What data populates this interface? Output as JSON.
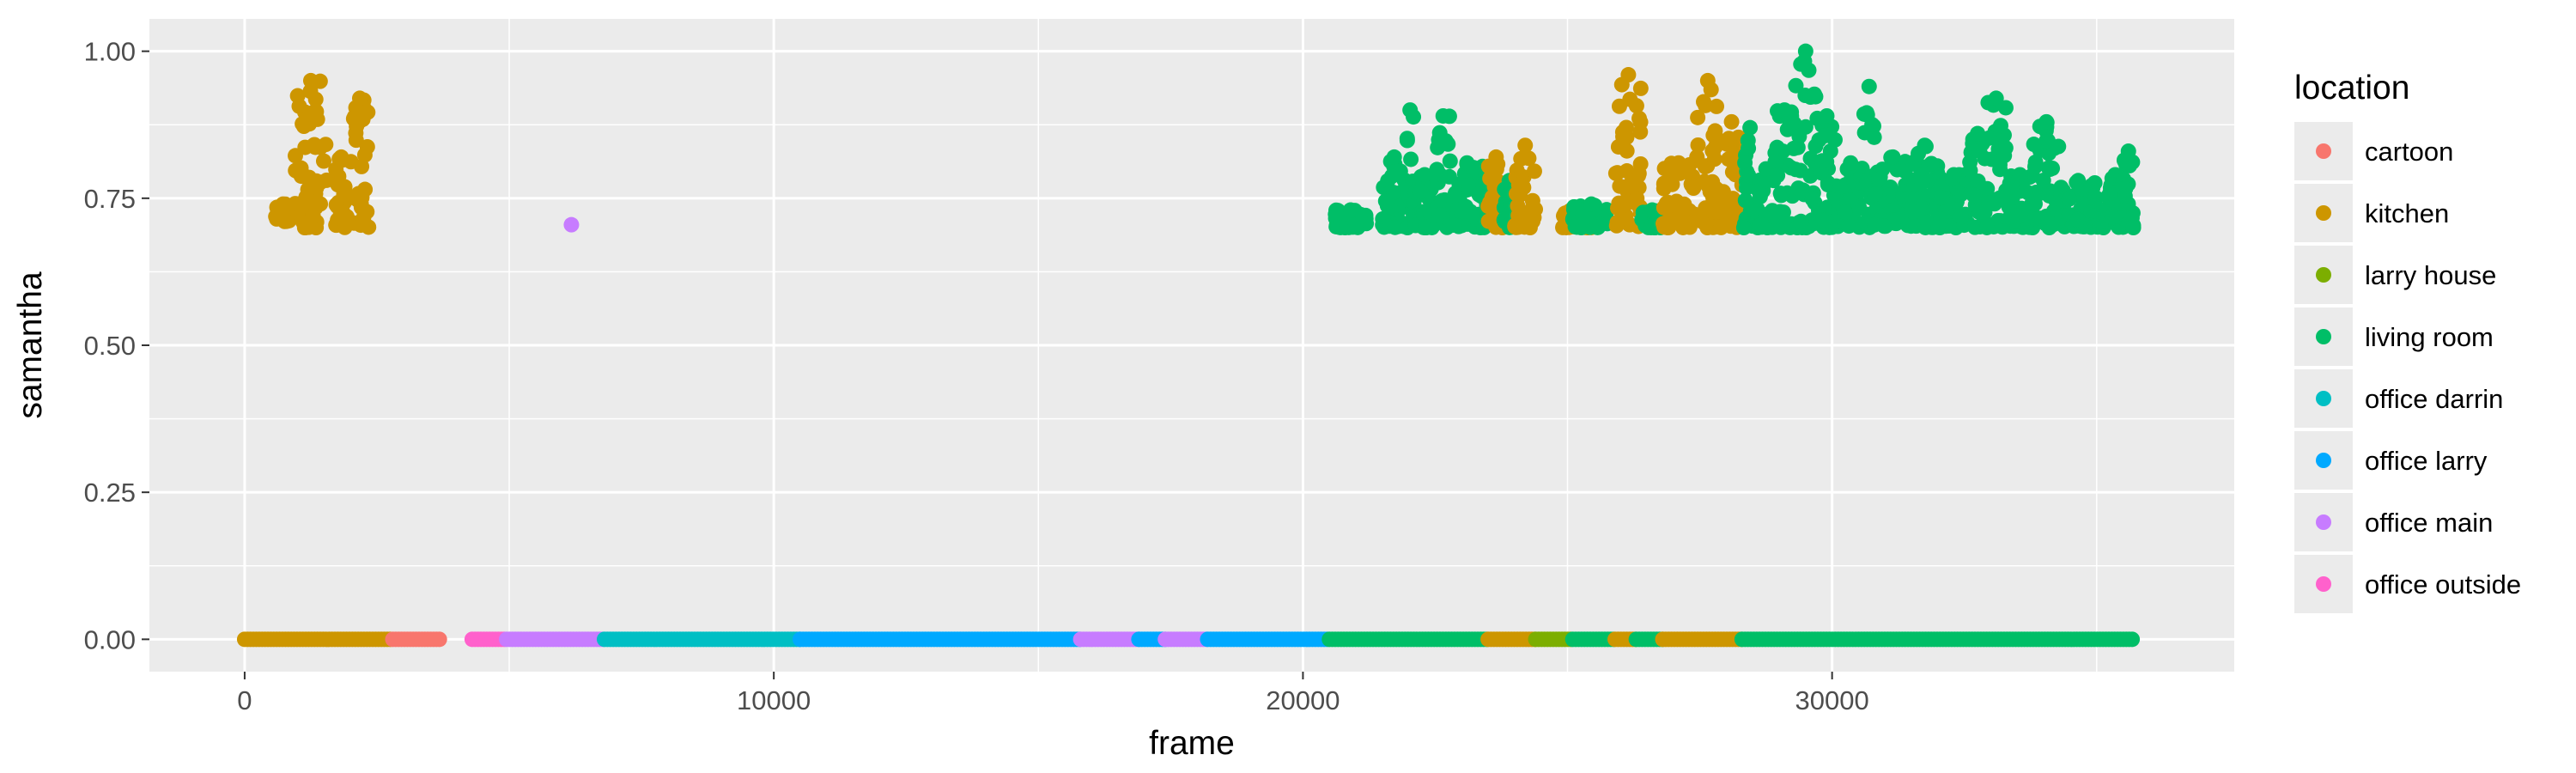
{
  "chart_data": {
    "type": "scatter",
    "title": "",
    "xlabel": "frame",
    "ylabel": "samantha",
    "xlim": [
      -1800,
      37600
    ],
    "ylim": [
      -0.055,
      1.055
    ],
    "x_ticks": [
      0,
      10000,
      20000,
      30000
    ],
    "x_tick_labels": [
      "0",
      "10000",
      "20000",
      "30000"
    ],
    "y_ticks": [
      0,
      0.25,
      0.5,
      0.75,
      1.0
    ],
    "y_tick_labels": [
      "0.00",
      "0.25",
      "0.50",
      "0.75",
      "1.00"
    ],
    "grid": true,
    "legend": {
      "title": "location",
      "placement": "right",
      "entries": [
        "cartoon",
        "kitchen",
        "larry house",
        "living room",
        "office darrin",
        "office larry",
        "office main",
        "office outside"
      ]
    },
    "colors": {
      "cartoon": "#F8766D",
      "kitchen": "#CD9600",
      "larry house": "#7CAE00",
      "living room": "#00BE67",
      "office darrin": "#00BFC4",
      "office larry": "#00A9FF",
      "office main": "#C77CFF",
      "office outside": "#FF61CC"
    },
    "baseline_segments": [
      {
        "location": "kitchen",
        "x": [
          0,
          2800
        ],
        "y": 0
      },
      {
        "location": "cartoon",
        "x": [
          2800,
          3700
        ],
        "y": 0
      },
      {
        "location": "office outside",
        "x": [
          4300,
          4950
        ],
        "y": 0
      },
      {
        "location": "office main",
        "x": [
          4950,
          6800
        ],
        "y": 0
      },
      {
        "location": "office darrin",
        "x": [
          6800,
          10500
        ],
        "y": 0
      },
      {
        "location": "office larry",
        "x": [
          10500,
          15800
        ],
        "y": 0
      },
      {
        "location": "office main",
        "x": [
          15800,
          16900
        ],
        "y": 0
      },
      {
        "location": "office larry",
        "x": [
          16900,
          17400
        ],
        "y": 0
      },
      {
        "location": "office main",
        "x": [
          17400,
          18200
        ],
        "y": 0
      },
      {
        "location": "office larry",
        "x": [
          18200,
          20500
        ],
        "y": 0
      },
      {
        "location": "living room",
        "x": [
          20500,
          23500
        ],
        "y": 0
      },
      {
        "location": "kitchen",
        "x": [
          23500,
          24400
        ],
        "y": 0
      },
      {
        "location": "larry house",
        "x": [
          24400,
          25100
        ],
        "y": 0
      },
      {
        "location": "living room",
        "x": [
          25100,
          25900
        ],
        "y": 0
      },
      {
        "location": "kitchen",
        "x": [
          25900,
          26300
        ],
        "y": 0
      },
      {
        "location": "living room",
        "x": [
          26300,
          26800
        ],
        "y": 0
      },
      {
        "location": "kitchen",
        "x": [
          26800,
          28300
        ],
        "y": 0
      },
      {
        "location": "living room",
        "x": [
          28300,
          35700
        ],
        "y": 0
      }
    ],
    "high_clusters": [
      {
        "location": "kitchen",
        "x": [
          550,
          900
        ],
        "y": [
          0.71,
          0.74
        ]
      },
      {
        "location": "kitchen",
        "x": [
          950,
          1550
        ],
        "y": [
          0.7,
          0.95
        ]
      },
      {
        "location": "kitchen",
        "x": [
          1700,
          1950
        ],
        "y": [
          0.7,
          0.82
        ]
      },
      {
        "location": "kitchen",
        "x": [
          2000,
          2350
        ],
        "y": [
          0.7,
          0.92
        ]
      },
      {
        "location": "office main",
        "x": [
          6150,
          6200
        ],
        "y": [
          0.705,
          0.705
        ]
      },
      {
        "location": "living room",
        "x": [
          20600,
          21200
        ],
        "y": [
          0.7,
          0.73
        ]
      },
      {
        "location": "living room",
        "x": [
          21500,
          21950
        ],
        "y": [
          0.7,
          0.82
        ]
      },
      {
        "location": "living room",
        "x": [
          21950,
          22100
        ],
        "y": [
          0.7,
          0.9
        ]
      },
      {
        "location": "living room",
        "x": [
          22100,
          22500
        ],
        "y": [
          0.7,
          0.79
        ]
      },
      {
        "location": "living room",
        "x": [
          22500,
          22800
        ],
        "y": [
          0.7,
          0.89
        ]
      },
      {
        "location": "living room",
        "x": [
          22800,
          23400
        ],
        "y": [
          0.7,
          0.81
        ]
      },
      {
        "location": "living room",
        "x": [
          23400,
          23500
        ],
        "y": [
          0.7,
          0.79
        ]
      },
      {
        "location": "kitchen",
        "x": [
          23500,
          23800
        ],
        "y": [
          0.7,
          0.82
        ]
      },
      {
        "location": "living room",
        "x": [
          23800,
          24000
        ],
        "y": [
          0.7,
          0.78
        ]
      },
      {
        "location": "kitchen",
        "x": [
          24000,
          24400
        ],
        "y": [
          0.7,
          0.84
        ]
      },
      {
        "location": "kitchen",
        "x": [
          24900,
          25600
        ],
        "y": [
          0.7,
          0.73
        ]
      },
      {
        "location": "living room",
        "x": [
          25100,
          25800
        ],
        "y": [
          0.7,
          0.74
        ]
      },
      {
        "location": "kitchen",
        "x": [
          25900,
          26400
        ],
        "y": [
          0.7,
          0.96
        ]
      },
      {
        "location": "living room",
        "x": [
          26400,
          26800
        ],
        "y": [
          0.7,
          0.73
        ]
      },
      {
        "location": "kitchen",
        "x": [
          26800,
          27400
        ],
        "y": [
          0.7,
          0.81
        ]
      },
      {
        "location": "kitchen",
        "x": [
          27400,
          27900
        ],
        "y": [
          0.7,
          0.95
        ]
      },
      {
        "location": "kitchen",
        "x": [
          27900,
          28300
        ],
        "y": [
          0.7,
          0.88
        ]
      },
      {
        "location": "living room",
        "x": [
          28300,
          28600
        ],
        "y": [
          0.7,
          0.87
        ]
      },
      {
        "location": "living room",
        "x": [
          28600,
          28900
        ],
        "y": [
          0.7,
          0.8
        ]
      },
      {
        "location": "living room",
        "x": [
          28900,
          29300
        ],
        "y": [
          0.7,
          0.9
        ]
      },
      {
        "location": "living room",
        "x": [
          29300,
          29700
        ],
        "y": [
          0.7,
          1.0
        ]
      },
      {
        "location": "living room",
        "x": [
          29700,
          30100
        ],
        "y": [
          0.7,
          0.89
        ]
      },
      {
        "location": "living room",
        "x": [
          30100,
          30600
        ],
        "y": [
          0.7,
          0.81
        ]
      },
      {
        "location": "living room",
        "x": [
          30600,
          30800
        ],
        "y": [
          0.7,
          0.94
        ]
      },
      {
        "location": "living room",
        "x": [
          30800,
          31500
        ],
        "y": [
          0.7,
          0.82
        ]
      },
      {
        "location": "living room",
        "x": [
          31500,
          32000
        ],
        "y": [
          0.7,
          0.84
        ]
      },
      {
        "location": "living room",
        "x": [
          32000,
          32600
        ],
        "y": [
          0.7,
          0.79
        ]
      },
      {
        "location": "living room",
        "x": [
          32600,
          32900
        ],
        "y": [
          0.7,
          0.86
        ]
      },
      {
        "location": "living room",
        "x": [
          32900,
          33300
        ],
        "y": [
          0.7,
          0.92
        ]
      },
      {
        "location": "living room",
        "x": [
          33300,
          33800
        ],
        "y": [
          0.7,
          0.79
        ]
      },
      {
        "location": "living room",
        "x": [
          33800,
          34300
        ],
        "y": [
          0.7,
          0.88
        ]
      },
      {
        "location": "living room",
        "x": [
          34300,
          35000
        ],
        "y": [
          0.7,
          0.78
        ]
      },
      {
        "location": "living room",
        "x": [
          35000,
          35200
        ],
        "y": [
          0.7,
          0.73
        ]
      },
      {
        "location": "living room",
        "x": [
          35200,
          35500
        ],
        "y": [
          0.7,
          0.79
        ]
      },
      {
        "location": "living room",
        "x": [
          35500,
          35700
        ],
        "y": [
          0.7,
          0.83
        ]
      }
    ]
  }
}
